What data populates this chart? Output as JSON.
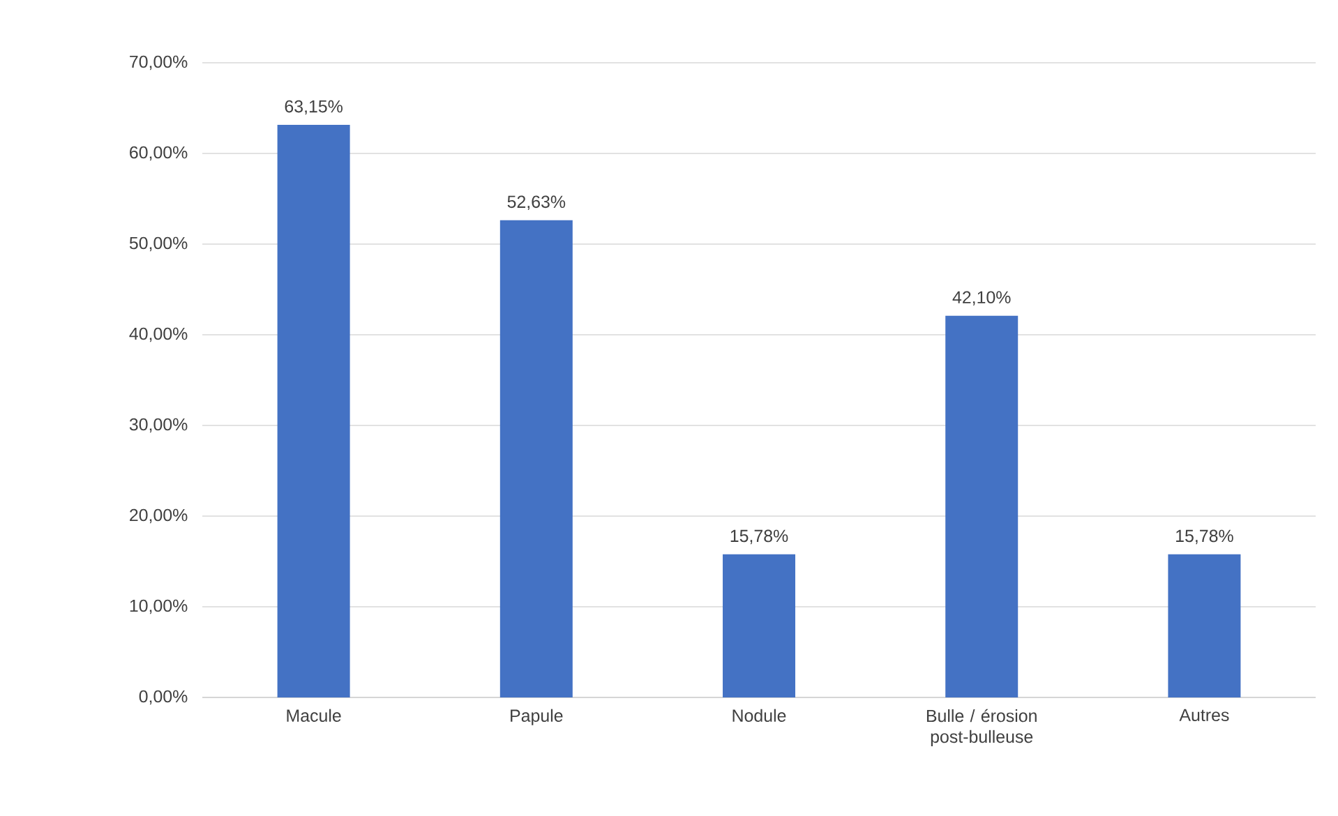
{
  "chart_data": {
    "type": "bar",
    "categories": [
      "Macule",
      "Papule",
      "Nodule",
      "Bulle / érosion post-bulleuse",
      "Autres"
    ],
    "values": [
      63.15,
      52.63,
      15.78,
      42.1,
      15.78
    ],
    "value_labels": [
      "63,15%",
      "52,63%",
      "15,78%",
      "42,10%",
      "15,78%"
    ],
    "color": "#4472c4",
    "ylim": [
      0,
      70
    ],
    "yticks": [
      {
        "value": 0,
        "label": "0,00%"
      },
      {
        "value": 10,
        "label": "10,00%"
      },
      {
        "value": 20,
        "label": "20,00%"
      },
      {
        "value": 30,
        "label": "30,00%"
      },
      {
        "value": 40,
        "label": "40,00%"
      },
      {
        "value": 50,
        "label": "50,00%"
      },
      {
        "value": 60,
        "label": "60,00%"
      },
      {
        "value": 70,
        "label": "70,00%"
      }
    ],
    "grid": "y"
  }
}
